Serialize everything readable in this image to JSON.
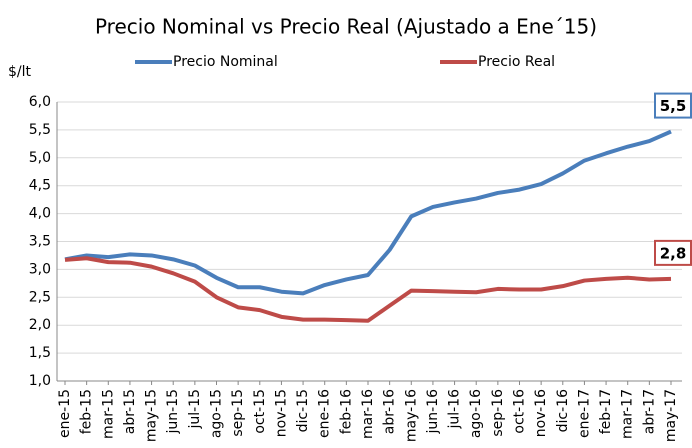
{
  "chart_data": {
    "type": "line",
    "title": "Precio Nominal vs Precio Real (Ajustado a Ene´15)",
    "y_label": "$/lt",
    "categories": [
      "ene-15",
      "feb-15",
      "mar-15",
      "abr-15",
      "may-15",
      "jun-15",
      "jul-15",
      "ago-15",
      "sep-15",
      "oct-15",
      "nov-15",
      "dic-15",
      "ene-16",
      "feb-16",
      "mar-16",
      "abr-16",
      "may-16",
      "jun-16",
      "jul-16",
      "ago-16",
      "sep-16",
      "oct-16",
      "nov-16",
      "dic-16",
      "ene-17",
      "feb-17",
      "mar-17",
      "abr-17",
      "may-17"
    ],
    "series": [
      {
        "name": "Precio Nominal",
        "color": "#4a7ebb",
        "values": [
          3.18,
          3.25,
          3.22,
          3.27,
          3.25,
          3.18,
          3.07,
          2.85,
          2.68,
          2.68,
          2.6,
          2.57,
          2.72,
          2.82,
          2.9,
          3.35,
          3.95,
          4.12,
          4.2,
          4.27,
          4.37,
          4.43,
          4.53,
          4.72,
          4.95,
          5.08,
          5.2,
          5.3,
          5.47
        ],
        "value_labels": [
          null,
          null,
          null,
          null,
          null,
          null,
          null,
          null,
          null,
          null,
          null,
          null,
          null,
          null,
          null,
          null,
          null,
          null,
          null,
          null,
          null,
          null,
          null,
          null,
          null,
          null,
          null,
          null,
          "5,5"
        ]
      },
      {
        "name": "Precio Real",
        "color": "#be4b48",
        "values": [
          3.17,
          3.2,
          3.13,
          3.12,
          3.05,
          2.93,
          2.78,
          2.5,
          2.32,
          2.27,
          2.15,
          2.1,
          2.1,
          2.09,
          2.08,
          2.35,
          2.62,
          2.61,
          2.6,
          2.59,
          2.65,
          2.64,
          2.64,
          2.7,
          2.8,
          2.83,
          2.85,
          2.82,
          2.83
        ],
        "value_labels": [
          null,
          null,
          null,
          null,
          null,
          null,
          null,
          null,
          null,
          null,
          null,
          null,
          null,
          null,
          null,
          null,
          null,
          null,
          null,
          null,
          null,
          null,
          null,
          null,
          null,
          null,
          null,
          null,
          "2,8"
        ]
      }
    ],
    "ylim": [
      1.0,
      6.0
    ],
    "yticks": [
      {
        "value": 1.0,
        "label": "1,0"
      },
      {
        "value": 1.5,
        "label": "1,5"
      },
      {
        "value": 2.0,
        "label": "2,0"
      },
      {
        "value": 2.5,
        "label": "2,5"
      },
      {
        "value": 3.0,
        "label": "3,0"
      },
      {
        "value": 3.5,
        "label": "3,5"
      },
      {
        "value": 4.0,
        "label": "4,0"
      },
      {
        "value": 4.5,
        "label": "4,5"
      },
      {
        "value": 5.0,
        "label": "5,0"
      },
      {
        "value": 5.5,
        "label": "5,5"
      },
      {
        "value": 6.0,
        "label": "6,0"
      }
    ],
    "grid": true,
    "legend": "top"
  }
}
